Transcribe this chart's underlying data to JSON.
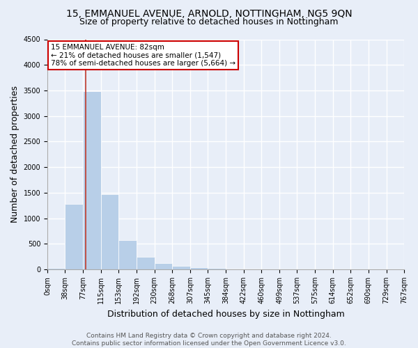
{
  "title_line1": "15, EMMANUEL AVENUE, ARNOLD, NOTTINGHAM, NG5 9QN",
  "title_line2": "Size of property relative to detached houses in Nottingham",
  "xlabel": "Distribution of detached houses by size in Nottingham",
  "ylabel": "Number of detached properties",
  "footer_line1": "Contains HM Land Registry data © Crown copyright and database right 2024.",
  "footer_line2": "Contains public sector information licensed under the Open Government Licence v3.0.",
  "property_size": 82,
  "property_label": "15 EMMANUEL AVENUE: 82sqm",
  "annotation_line1": "← 21% of detached houses are smaller (1,547)",
  "annotation_line2": "78% of semi-detached houses are larger (5,664) →",
  "bar_color": "#b8cfe8",
  "vline_color": "#c0392b",
  "annotation_box_edge_color": "#cc0000",
  "background_color": "#e8eef8",
  "grid_color": "#ffffff",
  "bin_edges": [
    0,
    38,
    77,
    115,
    153,
    192,
    230,
    268,
    307,
    345,
    384,
    422,
    460,
    499,
    537,
    575,
    614,
    652,
    690,
    729,
    767
  ],
  "bar_heights": [
    20,
    1280,
    3480,
    1470,
    570,
    240,
    115,
    70,
    35,
    20,
    12,
    8,
    5,
    2,
    1,
    0,
    0,
    0,
    0,
    0
  ],
  "ylim": [
    0,
    4500
  ],
  "yticks": [
    0,
    500,
    1000,
    1500,
    2000,
    2500,
    3000,
    3500,
    4000,
    4500
  ],
  "title_fontsize": 10,
  "subtitle_fontsize": 9,
  "axis_label_fontsize": 9,
  "tick_fontsize": 7,
  "annotation_fontsize": 7.5,
  "footer_fontsize": 6.5
}
